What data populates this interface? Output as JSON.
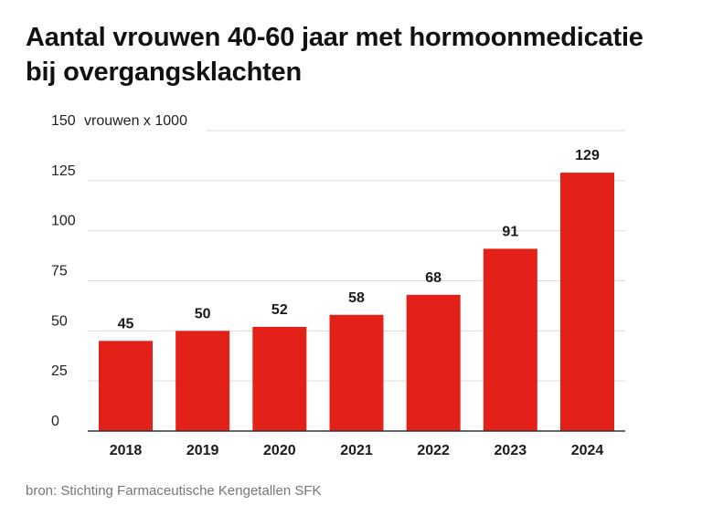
{
  "title": "Aantal vrouwen 40-60 jaar met hormoonmedicatie bij overgangsklachten",
  "source": "bron: Stichting Farmaceutische Kengetallen SFK",
  "colors": {
    "bar": "#e32119",
    "grid": "#dcdcdc",
    "axis": "#333333"
  },
  "chart_data": {
    "type": "bar",
    "title": "Aantal vrouwen 40-60 jaar met hormoonmedicatie bij overgangsklachten",
    "ylabel": "vrouwen x 1000",
    "xlabel": "",
    "categories": [
      "2018",
      "2019",
      "2020",
      "2021",
      "2022",
      "2023",
      "2024"
    ],
    "values": [
      45,
      50,
      52,
      58,
      68,
      91,
      129
    ],
    "ylim": [
      0,
      150
    ],
    "yticks": [
      0,
      25,
      50,
      75,
      100,
      125,
      150
    ],
    "grid": true,
    "data_labels": true
  }
}
